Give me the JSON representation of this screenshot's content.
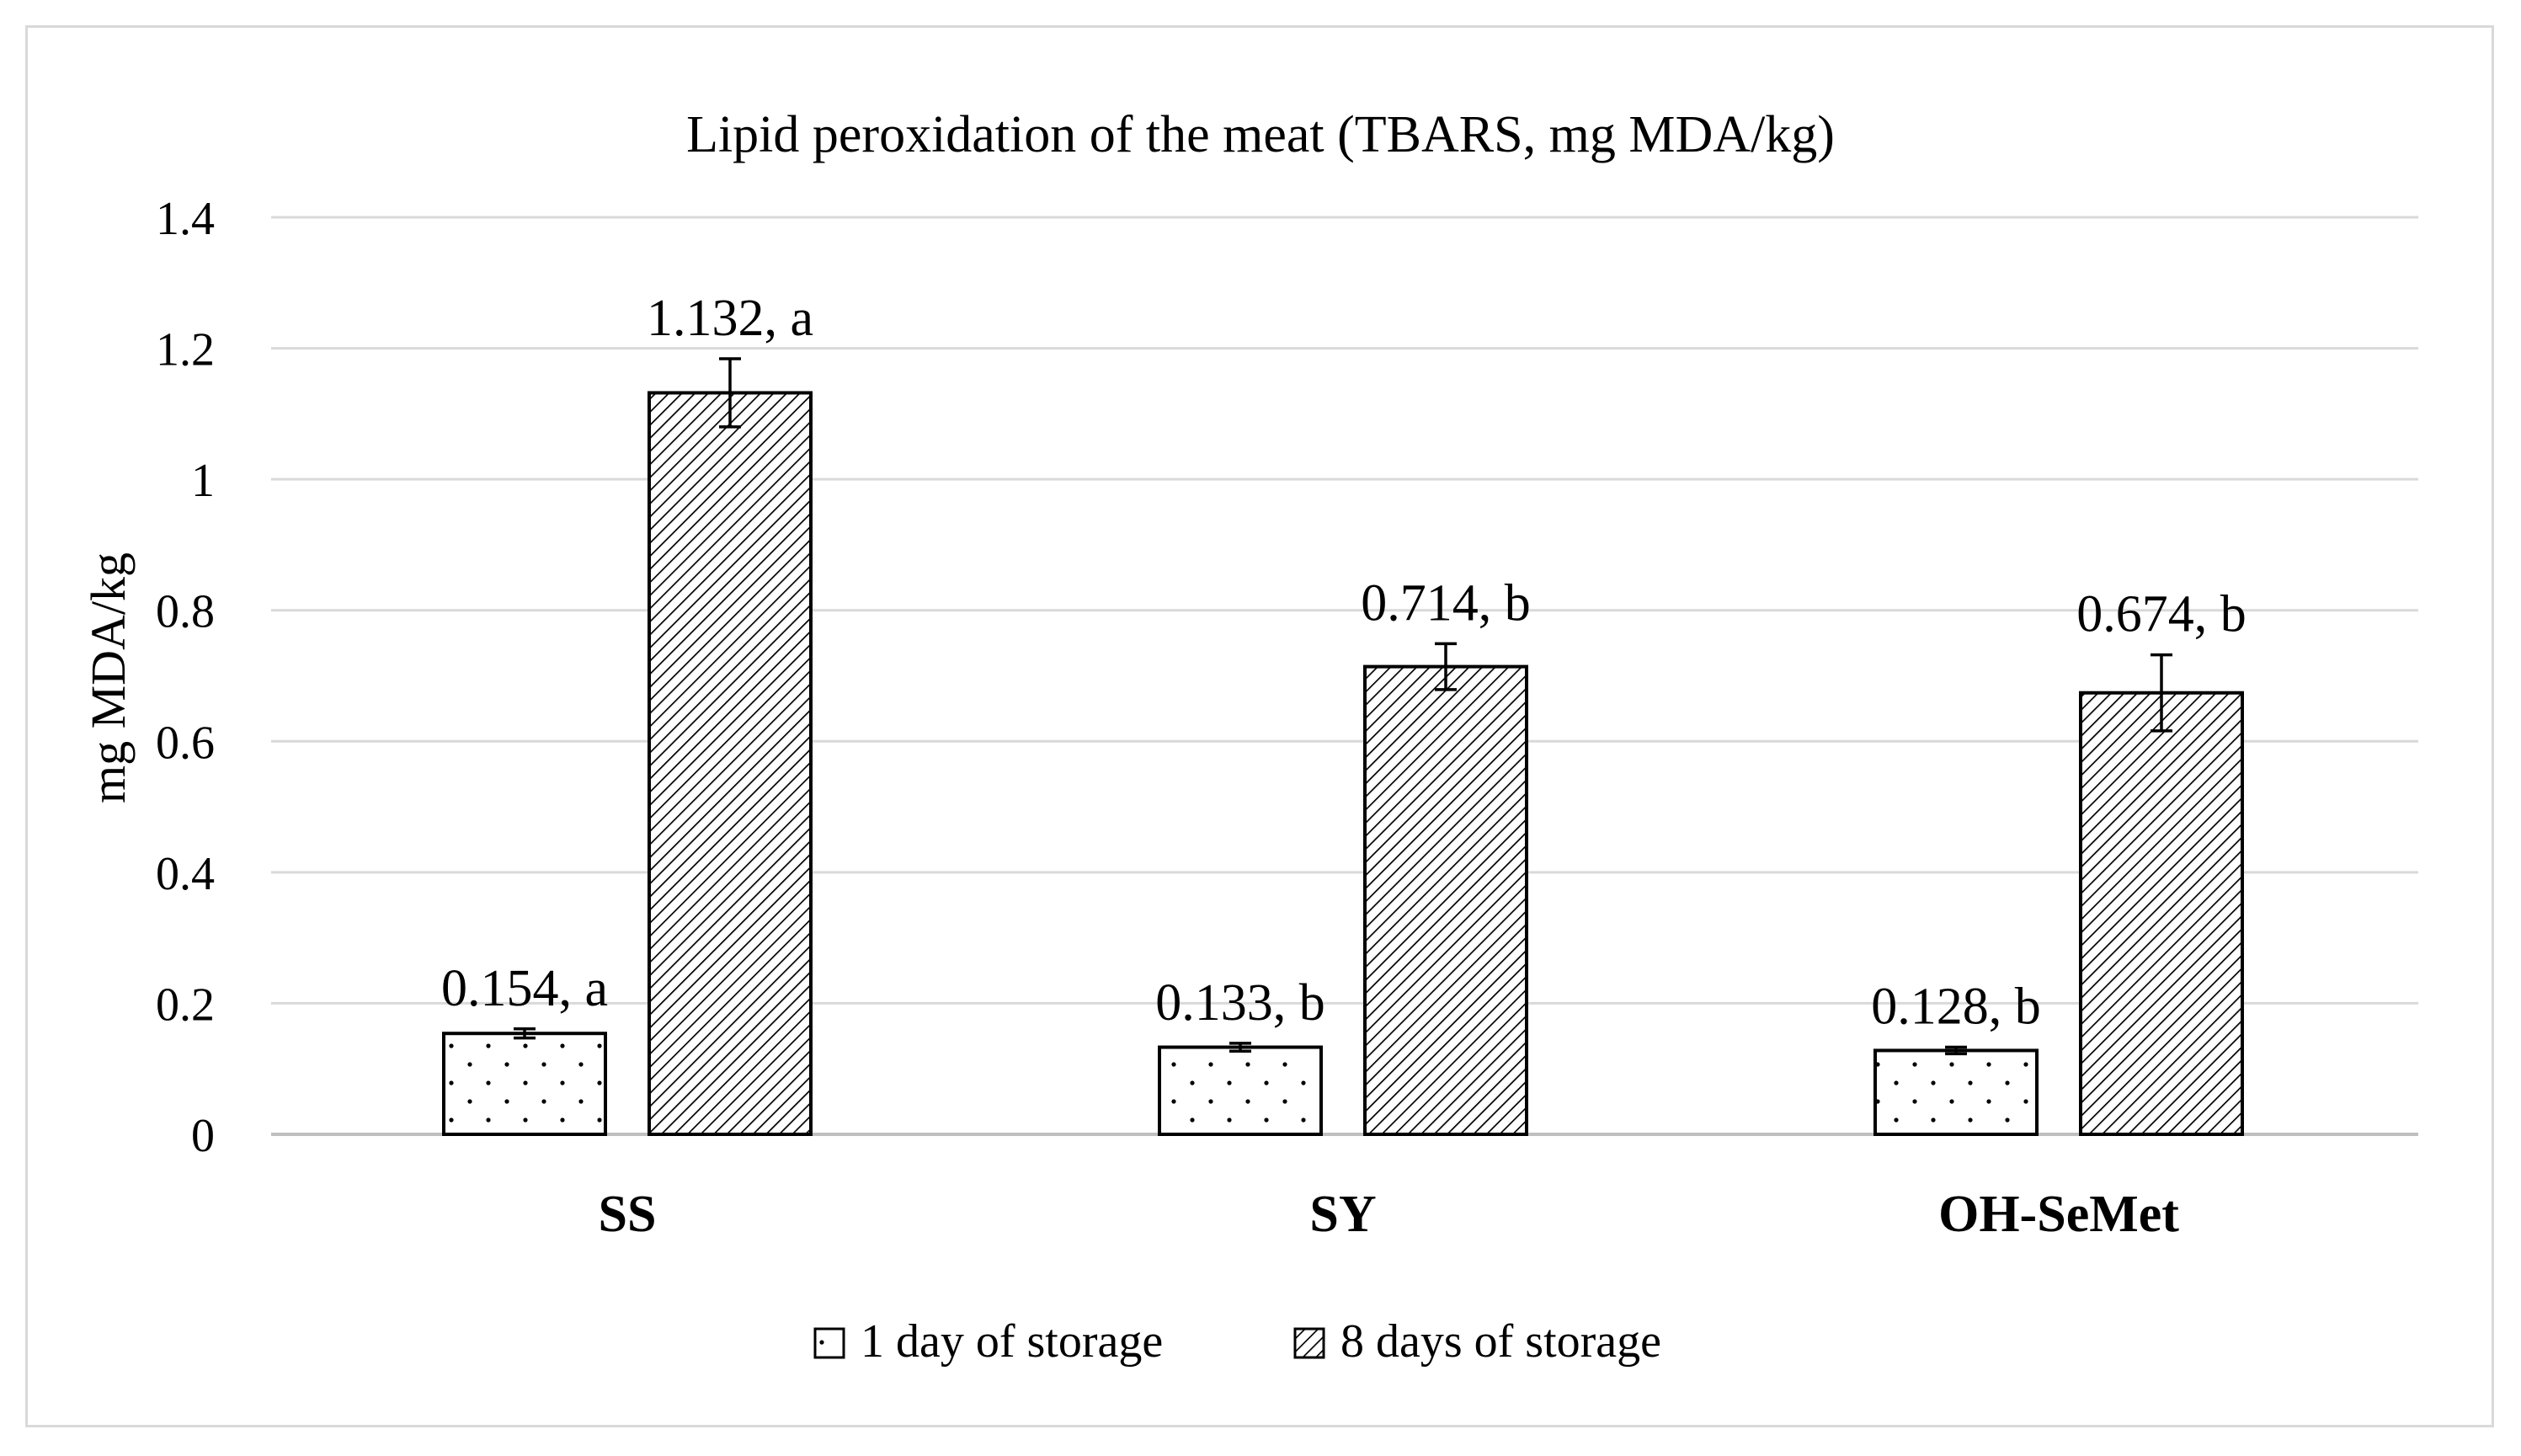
{
  "chart_data": {
    "type": "bar",
    "title": "Lipid peroxidation of the meat (TBARS, mg MDA/kg)",
    "xlabel": "",
    "ylabel": "mg MDA/kg",
    "ylim": [
      0,
      1.4
    ],
    "yticks": [
      "0",
      "0.2",
      "0.4",
      "0.6",
      "0.8",
      "1",
      "1.2",
      "1.4"
    ],
    "ytick_values": [
      0,
      0.2,
      0.4,
      0.6,
      0.8,
      1.0,
      1.2,
      1.4
    ],
    "grid": true,
    "legend_position": "bottom",
    "categories": [
      "SS",
      "SY",
      "OH-SeMet"
    ],
    "series": [
      {
        "name": "1 day of storage",
        "pattern": "dots",
        "values": [
          0.154,
          0.133,
          0.128
        ],
        "errors": [
          0.007,
          0.006,
          0.005
        ],
        "labels": [
          "0.154, a",
          "0.133, b",
          "0.128, b"
        ]
      },
      {
        "name": "8 days of storage",
        "pattern": "diagonal-hatch",
        "values": [
          1.132,
          0.714,
          0.674
        ],
        "errors": [
          0.052,
          0.035,
          0.058
        ],
        "labels": [
          "1.132, a",
          "0.714, b",
          "0.674, b"
        ]
      }
    ],
    "colors": {
      "bar_fill": "#ffffff",
      "bar_stroke": "#000000",
      "grid": "#d9d9d9",
      "text": "#000000"
    }
  }
}
